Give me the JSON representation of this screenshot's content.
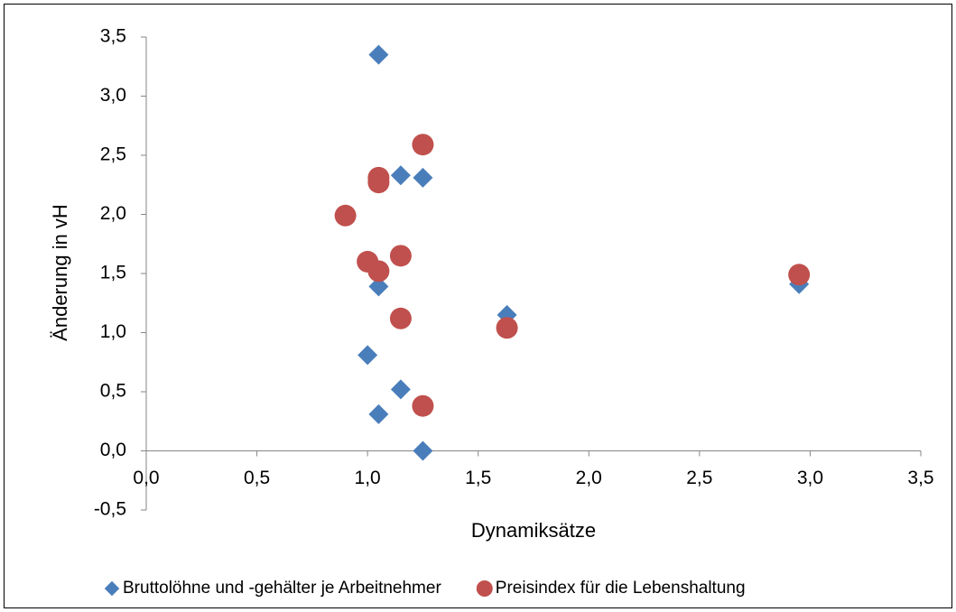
{
  "chart_data": {
    "type": "scatter",
    "x_label": "Dynamiksätze",
    "y_label": "Änderung in vH",
    "xlim": [
      0,
      3.5
    ],
    "ylim": [
      -0.5,
      3.5
    ],
    "xticks": [
      {
        "value": 0,
        "label": "0,0"
      },
      {
        "value": 0.5,
        "label": "0,5"
      },
      {
        "value": 1,
        "label": "1,0"
      },
      {
        "value": 1.5,
        "label": "1,5"
      },
      {
        "value": 2,
        "label": "2,0"
      },
      {
        "value": 2.5,
        "label": "2,5"
      },
      {
        "value": 3,
        "label": "3,0"
      },
      {
        "value": 3.5,
        "label": "3,5"
      }
    ],
    "yticks": [
      {
        "value": -0.5,
        "label": "-0,5"
      },
      {
        "value": 0,
        "label": "0,0"
      },
      {
        "value": 0.5,
        "label": "0,5"
      },
      {
        "value": 1,
        "label": "1,0"
      },
      {
        "value": 1.5,
        "label": "1,5"
      },
      {
        "value": 2,
        "label": "2,0"
      },
      {
        "value": 2.5,
        "label": "2,5"
      },
      {
        "value": 3,
        "label": "3,0"
      },
      {
        "value": 3.5,
        "label": "3,5"
      }
    ],
    "legend": "bottom",
    "series": [
      {
        "name": "Bruttolöhne und -gehälter je Arbeitnehmer",
        "color": "#4a7ebb",
        "marker": "diamond",
        "x": [
          1.05,
          1.15,
          1.25,
          1.05,
          1.63,
          2.95,
          1.0,
          1.15,
          1.05,
          1.25
        ],
        "values": [
          3.35,
          2.33,
          2.31,
          1.39,
          1.15,
          1.41,
          0.81,
          0.52,
          0.31,
          0
        ]
      },
      {
        "name": "Preisindex für die Lebenshaltung",
        "color": "#c0504d",
        "marker": "circle",
        "x": [
          1.25,
          1.05,
          1.05,
          0.9,
          1.0,
          1.05,
          1.15,
          1.15,
          1.63,
          2.95,
          1.25
        ],
        "values": [
          2.59,
          2.31,
          2.27,
          1.99,
          1.6,
          1.52,
          1.65,
          1.12,
          1.04,
          1.49,
          0.38
        ]
      }
    ]
  }
}
